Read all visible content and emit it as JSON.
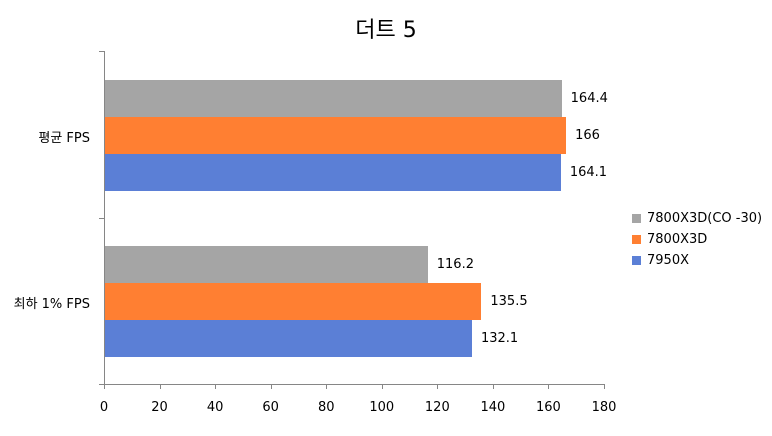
{
  "chart_data": {
    "type": "bar",
    "orientation": "horizontal",
    "title": "더트 5",
    "categories": [
      "평균 FPS",
      "최하 1% FPS"
    ],
    "series": [
      {
        "name": "7800X3D(CO -30)",
        "color": "#a5a5a5",
        "values": [
          164.4,
          116.2
        ]
      },
      {
        "name": "7800X3D",
        "color": "#ff7f32",
        "values": [
          166,
          135.5
        ]
      },
      {
        "name": "7950X",
        "color": "#5b7fd6",
        "values": [
          164.1,
          132.1
        ]
      }
    ],
    "value_labels": [
      [
        "164.4",
        "116.2"
      ],
      [
        "166",
        "135.5"
      ],
      [
        "164.1",
        "132.1"
      ]
    ],
    "xlabel": "",
    "ylabel": "",
    "xlim": [
      0,
      180
    ],
    "xticks": [
      "0",
      "20",
      "40",
      "60",
      "80",
      "100",
      "120",
      "140",
      "160",
      "180"
    ],
    "grid": false,
    "legend_position": "right"
  }
}
